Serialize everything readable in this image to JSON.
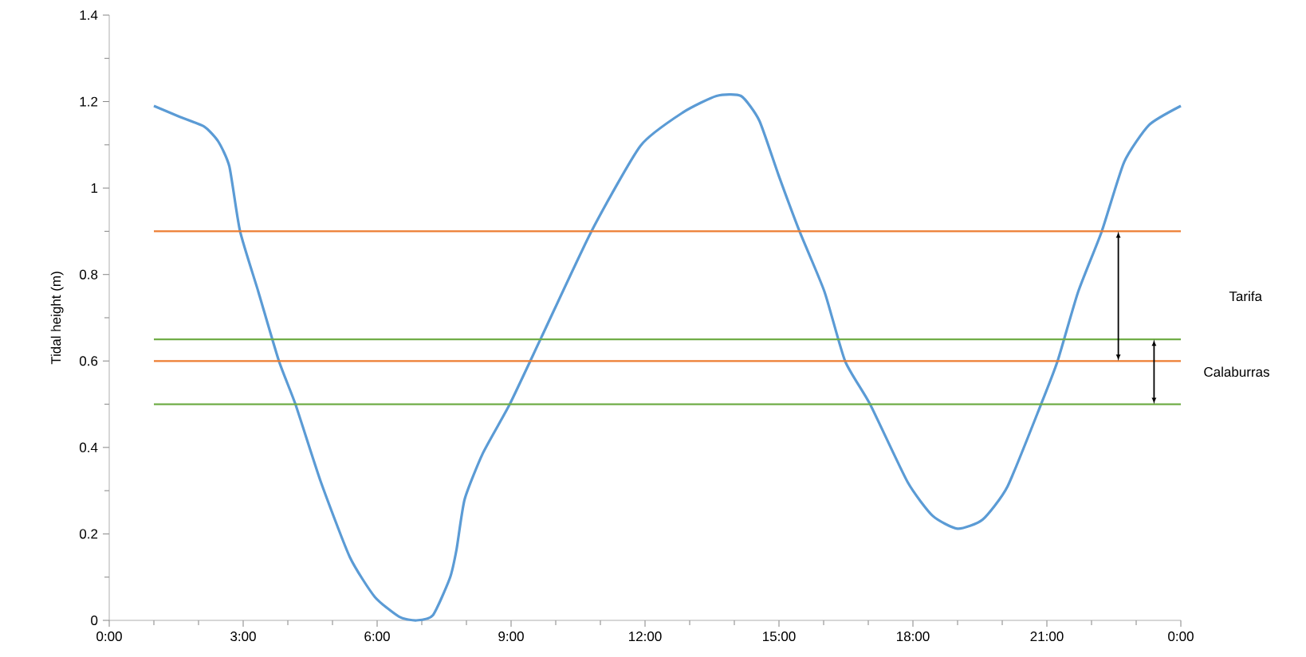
{
  "chart_data": {
    "type": "line",
    "ylabel": "Tidal height (m)",
    "xlim": [
      0,
      24
    ],
    "ylim": [
      0,
      1.4
    ],
    "xticks": [
      {
        "value": 0,
        "label": "0:00"
      },
      {
        "value": 3,
        "label": "3:00"
      },
      {
        "value": 6,
        "label": "6:00"
      },
      {
        "value": 9,
        "label": "9:00"
      },
      {
        "value": 12,
        "label": "12:00"
      },
      {
        "value": 15,
        "label": "15:00"
      },
      {
        "value": 18,
        "label": "18:00"
      },
      {
        "value": 21,
        "label": "21:00"
      },
      {
        "value": 24,
        "label": "0:00"
      }
    ],
    "yticks": [
      0,
      0.2,
      0.4,
      0.6,
      0.8,
      1,
      1.2,
      1.4
    ],
    "grid": false,
    "marker": "none",
    "line_style": "solid",
    "annotations": [
      "Tarifa",
      "Calaburras"
    ],
    "series": [
      {
        "color": "#5b9bd5",
        "x": [
          1,
          1.57,
          2.13,
          2.44,
          2.69,
          2.93,
          3.34,
          3.8,
          4.17,
          4.74,
          5.39,
          5.95,
          6.5,
          6.88,
          7.25,
          7.63,
          7.78,
          7.96,
          8.37,
          8.97,
          9.68,
          10.8,
          11.9,
          12.85,
          13.6,
          14.15,
          14.56,
          14.99,
          15.46,
          16.02,
          16.48,
          17.04,
          17.88,
          18.44,
          19.0,
          19.56,
          20.12,
          20.87,
          21.24,
          21.7,
          22.23,
          22.73,
          23.29,
          24
        ],
        "values": [
          1.19,
          1.165,
          1.142,
          1.108,
          1.05,
          0.9,
          0.76,
          0.6,
          0.5,
          0.32,
          0.146,
          0.054,
          0.008,
          0,
          0.012,
          0.098,
          0.165,
          0.28,
          0.387,
          0.5,
          0.655,
          0.9,
          1.098,
          1.175,
          1.213,
          1.213,
          1.156,
          1.03,
          0.9,
          0.76,
          0.6,
          0.5,
          0.32,
          0.242,
          0.212,
          0.233,
          0.31,
          0.5,
          0.6,
          0.76,
          0.9,
          1.06,
          1.146,
          1.19
        ]
      },
      {
        "color": "#ed7d31",
        "x": [
          1,
          24
        ],
        "values": [
          0.9,
          0.9
        ]
      },
      {
        "color": "#ed7d31",
        "x": [
          1,
          24
        ],
        "values": [
          0.6,
          0.6
        ]
      },
      {
        "color": "#70ad47",
        "x": [
          1,
          24
        ],
        "values": [
          0.65,
          0.65
        ]
      },
      {
        "color": "#70ad47",
        "x": [
          1,
          24
        ],
        "values": [
          0.5,
          0.5
        ]
      }
    ]
  }
}
